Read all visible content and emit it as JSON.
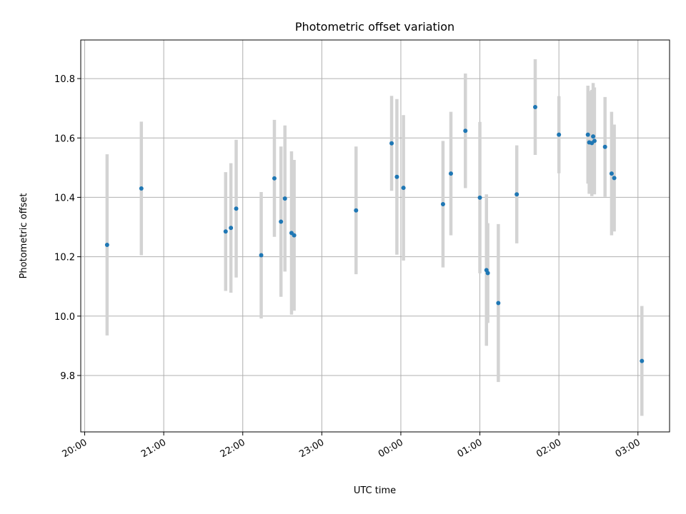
{
  "chart_data": {
    "type": "scatter",
    "title": "Photometric offset variation",
    "xlabel": "UTC time",
    "ylabel": "Photometric offset",
    "grid": true,
    "x_ticks": [
      "20:00",
      "21:00",
      "22:00",
      "23:00",
      "00:00",
      "01:00",
      "02:00",
      "03:00"
    ],
    "y_ticks": [
      9.8,
      10.0,
      10.2,
      10.4,
      10.6,
      10.8
    ],
    "xlim": [
      "19:57",
      "03:24"
    ],
    "ylim": [
      9.61,
      10.93
    ],
    "point_color": "#1f77b4",
    "errorbar_color": "#d3d3d3",
    "points": [
      {
        "t": "20:17",
        "y": 10.24,
        "err": 0.305
      },
      {
        "t": "20:43",
        "y": 10.43,
        "err": 0.225
      },
      {
        "t": "21:47",
        "y": 10.285,
        "err": 0.2
      },
      {
        "t": "21:51",
        "y": 10.297,
        "err": 0.218
      },
      {
        "t": "21:55",
        "y": 10.362,
        "err": 0.232
      },
      {
        "t": "22:14",
        "y": 10.205,
        "err": 0.213
      },
      {
        "t": "22:24",
        "y": 10.464,
        "err": 0.197
      },
      {
        "t": "22:29",
        "y": 10.318,
        "err": 0.253
      },
      {
        "t": "22:32",
        "y": 10.396,
        "err": 0.246
      },
      {
        "t": "22:37",
        "y": 10.28,
        "err": 0.275
      },
      {
        "t": "22:39",
        "y": 10.272,
        "err": 0.254
      },
      {
        "t": "23:26",
        "y": 10.356,
        "err": 0.215
      },
      {
        "t": "23:53",
        "y": 10.582,
        "err": 0.16
      },
      {
        "t": "23:57",
        "y": 10.469,
        "err": 0.262
      },
      {
        "t": "00:02",
        "y": 10.432,
        "err": 0.245
      },
      {
        "t": "00:32",
        "y": 10.377,
        "err": 0.213
      },
      {
        "t": "00:38",
        "y": 10.48,
        "err": 0.208
      },
      {
        "t": "00:49",
        "y": 10.624,
        "err": 0.193
      },
      {
        "t": "01:00",
        "y": 10.399,
        "err": 0.255
      },
      {
        "t": "01:05",
        "y": 10.155,
        "err": 0.255
      },
      {
        "t": "01:06",
        "y": 10.145,
        "err": 0.168
      },
      {
        "t": "01:14",
        "y": 10.044,
        "err": 0.266
      },
      {
        "t": "01:28",
        "y": 10.41,
        "err": 0.165
      },
      {
        "t": "01:42",
        "y": 10.704,
        "err": 0.161
      },
      {
        "t": "02:00",
        "y": 10.611,
        "err": 0.13
      },
      {
        "t": "02:22",
        "y": 10.611,
        "err": 0.165
      },
      {
        "t": "02:23",
        "y": 10.585,
        "err": 0.173
      },
      {
        "t": "02:25",
        "y": 10.583,
        "err": 0.179
      },
      {
        "t": "02:26",
        "y": 10.605,
        "err": 0.18
      },
      {
        "t": "02:27",
        "y": 10.59,
        "err": 0.18
      },
      {
        "t": "02:35",
        "y": 10.57,
        "err": 0.168
      },
      {
        "t": "02:40",
        "y": 10.48,
        "err": 0.208
      },
      {
        "t": "02:42",
        "y": 10.465,
        "err": 0.18
      },
      {
        "t": "03:03",
        "y": 9.849,
        "err": 0.185
      }
    ]
  }
}
